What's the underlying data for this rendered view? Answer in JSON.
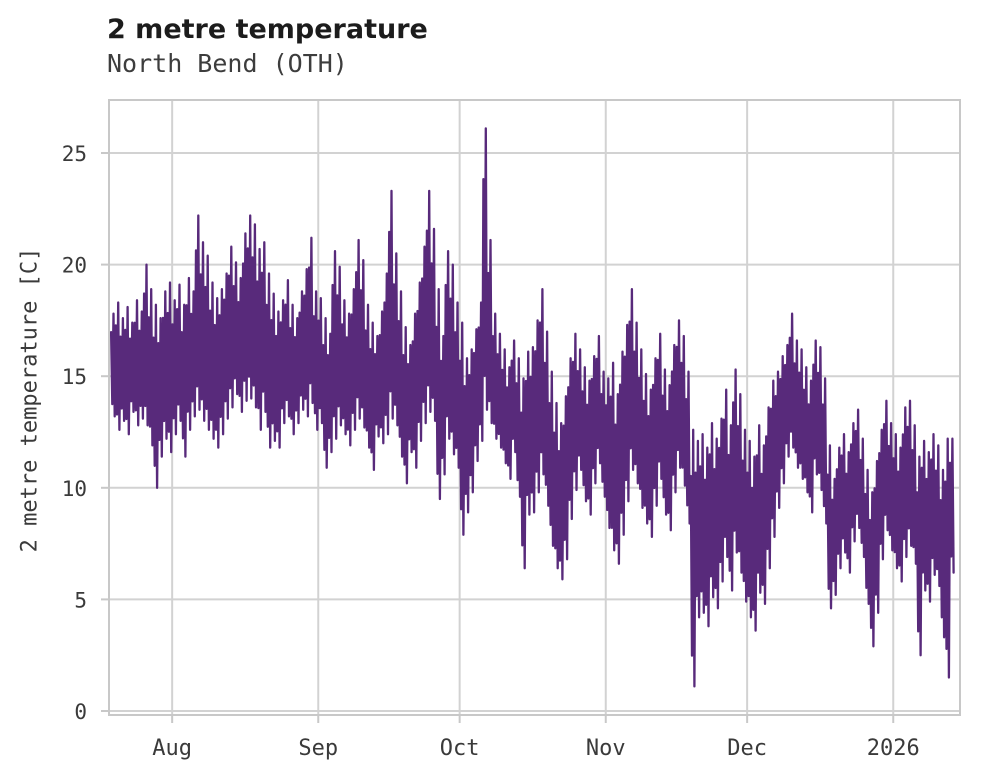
{
  "chart_data": {
    "type": "line",
    "title": "2 metre temperature",
    "subtitle": "North Bend (OTH)",
    "xlabel": "",
    "ylabel": "2 metre temperature [C]",
    "ylim": [
      0,
      27.4
    ],
    "yticks": [
      0,
      5,
      10,
      15,
      20,
      25
    ],
    "y_tick_labels": [
      "0",
      "5",
      "10",
      "15",
      "20",
      "25"
    ],
    "x_tick_labels": [
      "Aug",
      "Sep",
      "Oct",
      "Nov",
      "Dec",
      "2026"
    ],
    "x_tick_days": [
      13,
      44,
      74,
      105,
      135,
      166
    ],
    "x_range_days": [
      0,
      179
    ],
    "grid": true,
    "legend": "none",
    "line_color": "#582a7b",
    "grid_color": "#d2d2d2",
    "border_color": "#c8c8c8",
    "series": [
      {
        "name": "2 metre temperature",
        "sampling": "daily min/max envelope of the hourly trace; day 0 = first day plotted (mid-July), month tick positions given in x_tick_days",
        "daily_min": [
          13.2,
          12.6,
          13.0,
          12.4,
          13.4,
          12.8,
          13.1,
          12.8,
          11.9,
          10.0,
          11.4,
          12.2,
          11.6,
          12.4,
          13.0,
          11.4,
          12.6,
          13.2,
          13.5,
          13.0,
          12.6,
          12.2,
          11.8,
          12.4,
          13.1,
          13.6,
          14.2,
          13.4,
          13.9,
          14.0,
          13.6,
          12.6,
          13.4,
          11.8,
          12.1,
          11.8,
          12.9,
          13.2,
          12.4,
          12.9,
          13.5,
          13.2,
          13.8,
          12.6,
          12.9,
          10.9,
          11.6,
          12.2,
          12.8,
          12.4,
          11.9,
          12.6,
          13.1,
          12.7,
          11.8,
          10.8,
          12.3,
          12.0,
          12.4,
          13.1,
          12.8,
          11.4,
          10.2,
          11.6,
          10.9,
          12.1,
          12.9,
          13.4,
          13.0,
          9.5,
          10.6,
          12.2,
          11.5,
          10.9,
          7.9,
          8.9,
          9.8,
          11.2,
          12.1,
          13.5,
          12.9,
          12.2,
          11.8,
          11.1,
          10.4,
          11.6,
          9.6,
          6.4,
          8.8,
          8.9,
          9.8,
          10.6,
          9.2,
          7.4,
          6.4,
          5.9,
          6.8,
          8.6,
          9.9,
          10.8,
          9.4,
          8.8,
          10.2,
          11.1,
          9.6,
          8.2,
          7.2,
          6.6,
          7.9,
          9.4,
          10.8,
          10.2,
          9.1,
          8.4,
          7.8,
          9.2,
          10.4,
          8.8,
          8.1,
          9.8,
          10.9,
          10.1,
          8.4,
          1.1,
          4.2,
          4.4,
          3.8,
          5.1,
          4.6,
          5.8,
          6.9,
          5.4,
          7.1,
          6.2,
          4.9,
          4.2,
          3.6,
          5.3,
          4.8,
          6.4,
          7.8,
          9.1,
          10.2,
          11.4,
          11.8,
          10.9,
          10.4,
          9.8,
          8.9,
          10.6,
          9.9,
          8.4,
          4.6,
          5.2,
          6.4,
          7.1,
          6.2,
          7.6,
          8.2,
          6.9,
          4.8,
          2.9,
          4.4,
          6.8,
          8.1,
          7.2,
          6.4,
          5.8,
          6.9,
          7.4,
          6.6,
          2.5,
          5.4,
          4.9,
          6.1,
          5.6,
          3.3,
          1.5,
          6.2
        ],
        "daily_max": [
          17.8,
          18.3,
          17.6,
          18.1,
          17.4,
          18.4,
          17.9,
          20.0,
          18.9,
          18.2,
          17.6,
          18.8,
          19.2,
          18.4,
          19.1,
          18.2,
          19.4,
          18.8,
          22.2,
          21.0,
          20.4,
          19.2,
          18.5,
          18.9,
          19.6,
          20.8,
          20.1,
          19.4,
          21.4,
          22.2,
          21.8,
          20.7,
          21.0,
          19.6,
          18.7,
          17.9,
          18.4,
          19.3,
          18.2,
          17.6,
          18.8,
          19.8,
          21.2,
          18.8,
          18.5,
          17.6,
          16.9,
          20.6,
          19.9,
          18.4,
          17.8,
          18.9,
          21.1,
          20.2,
          18.2,
          17.4,
          16.8,
          17.9,
          19.6,
          23.3,
          20.5,
          18.8,
          17.2,
          16.4,
          17.8,
          19.2,
          20.8,
          23.3,
          21.6,
          18.9,
          16.8,
          20.6,
          20.0,
          18.3,
          17.4,
          15.8,
          16.2,
          17.1,
          18.3,
          26.1,
          21.1,
          17.8,
          16.9,
          16.2,
          15.4,
          16.6,
          15.8,
          14.9,
          16.1,
          16.3,
          17.5,
          18.9,
          17.0,
          15.2,
          13.8,
          12.9,
          14.1,
          15.8,
          16.9,
          16.2,
          15.4,
          14.8,
          15.9,
          16.8,
          15.2,
          14.9,
          15.6,
          14.2,
          16.1,
          17.3,
          18.9,
          17.4,
          16.2,
          15.1,
          14.4,
          15.8,
          16.9,
          15.3,
          14.6,
          16.4,
          17.5,
          16.8,
          15.2,
          12.6,
          12.1,
          12.4,
          11.8,
          12.9,
          12.2,
          13.1,
          14.4,
          12.8,
          15.3,
          14.2,
          12.6,
          12.1,
          11.4,
          12.8,
          11.9,
          13.6,
          14.8,
          15.2,
          15.9,
          16.4,
          17.8,
          16.6,
          16.2,
          15.4,
          14.8,
          16.6,
          16.3,
          14.9,
          11.9,
          10.4,
          11.8,
          12.4,
          11.6,
          12.9,
          13.5,
          12.2,
          10.8,
          9.8,
          11.2,
          12.6,
          13.9,
          12.9,
          12.4,
          11.8,
          13.6,
          13.9,
          12.8,
          11.4,
          12.1,
          11.6,
          12.4,
          11.9,
          10.8,
          12.2,
          12.2
        ]
      }
    ]
  }
}
